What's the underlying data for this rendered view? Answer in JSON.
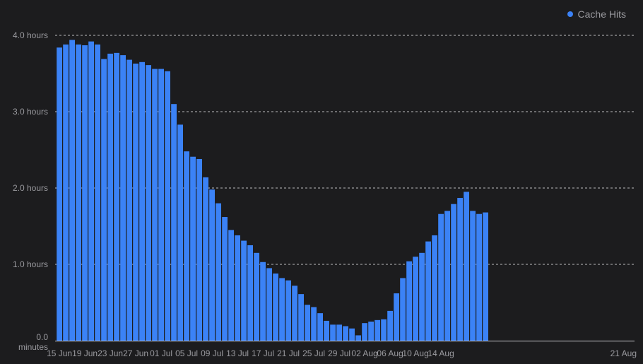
{
  "chart_data": {
    "type": "bar",
    "grid": true,
    "legend_placement": "top-right",
    "series": [
      {
        "name": "Cache Hits",
        "color": "#3b82f6",
        "values": [
          3.84,
          3.88,
          3.94,
          3.88,
          3.87,
          3.92,
          3.88,
          3.69,
          3.76,
          3.77,
          3.74,
          3.68,
          3.63,
          3.65,
          3.61,
          3.56,
          3.56,
          3.53,
          3.1,
          2.83,
          2.48,
          2.41,
          2.38,
          2.14,
          1.98,
          1.8,
          1.62,
          1.45,
          1.38,
          1.31,
          1.25,
          1.15,
          1.03,
          0.95,
          0.88,
          0.82,
          0.79,
          0.72,
          0.61,
          0.47,
          0.44,
          0.36,
          0.26,
          0.21,
          0.21,
          0.19,
          0.16,
          0.07,
          0.23,
          0.25,
          0.27,
          0.28,
          0.39,
          0.62,
          0.82,
          1.04,
          1.1,
          1.15,
          1.3,
          1.38,
          1.66,
          1.7,
          1.79,
          1.87,
          1.95,
          1.7,
          1.66,
          1.68
        ]
      }
    ],
    "ylim": [
      0,
      4
    ],
    "y_ticks": [
      {
        "value": 0,
        "label": "0.0",
        "label2": "minutes"
      },
      {
        "value": 1,
        "label": "1.0 hours"
      },
      {
        "value": 2,
        "label": "2.0 hours"
      },
      {
        "value": 3,
        "label": "3.0 hours"
      },
      {
        "value": 4,
        "label": "4.0 hours"
      }
    ],
    "x_ticks": [
      {
        "index": 0,
        "label": "15 Jun"
      },
      {
        "index": 4,
        "label": "19 Jun"
      },
      {
        "index": 8,
        "label": "23 Jun"
      },
      {
        "index": 12,
        "label": "27 Jun"
      },
      {
        "index": 16,
        "label": "01 Jul"
      },
      {
        "index": 20,
        "label": "05 Jul"
      },
      {
        "index": 24,
        "label": "09 Jul"
      },
      {
        "index": 28,
        "label": "13 Jul"
      },
      {
        "index": 32,
        "label": "17 Jul"
      },
      {
        "index": 36,
        "label": "21 Jul"
      },
      {
        "index": 40,
        "label": "25 Jul"
      },
      {
        "index": 44,
        "label": "29 Jul"
      },
      {
        "index": 48,
        "label": "02 Aug"
      },
      {
        "index": 52,
        "label": "06 Aug"
      },
      {
        "index": 56,
        "label": "10 Aug"
      },
      {
        "index": 60,
        "label": "14 Aug"
      },
      {
        "index": 67,
        "label": "21 Aug"
      }
    ]
  }
}
